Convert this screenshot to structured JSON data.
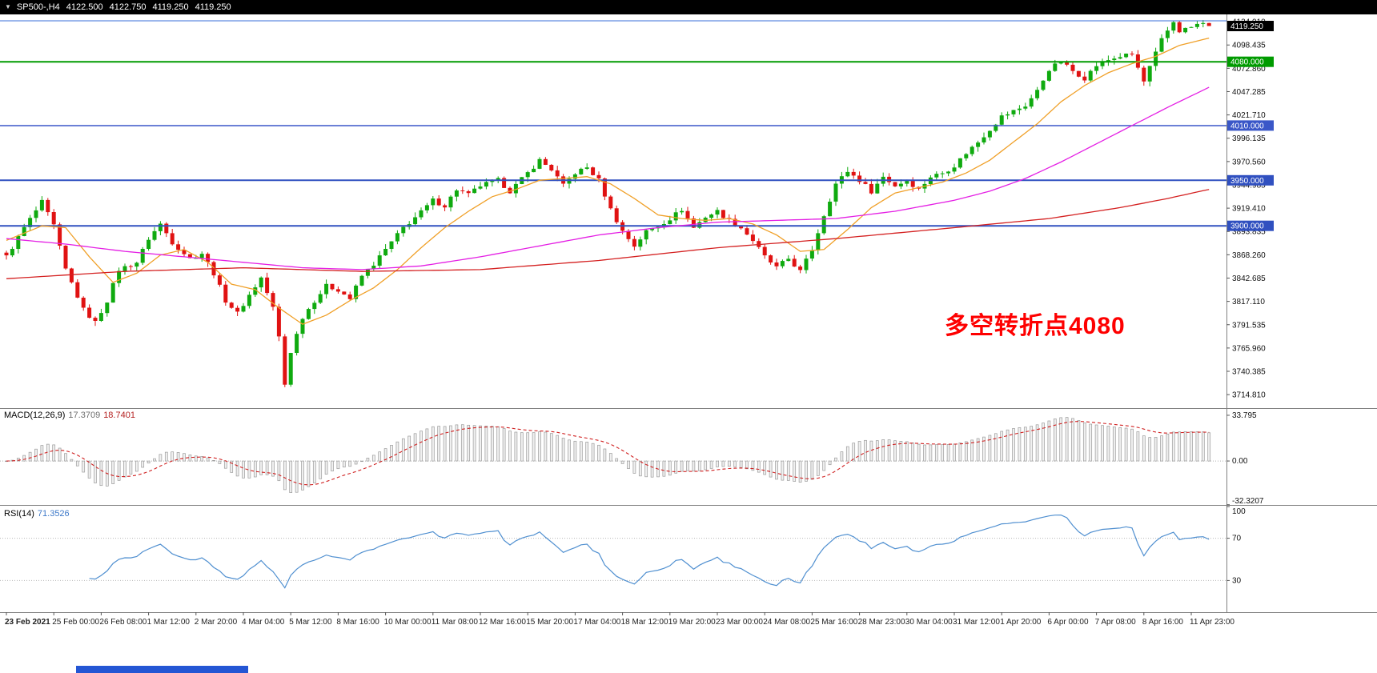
{
  "header": {
    "dropdown_icon": "▼",
    "symbol_period": "SP500-,H4",
    "open": "4122.500",
    "high": "4122.750",
    "low": "4119.250",
    "close": "4119.250"
  },
  "annotation": {
    "text": "多空转折点4080",
    "color": "#fe0000"
  },
  "indicators": {
    "macd": {
      "name": "MACD(12,26,9)",
      "main_value": "17.3709",
      "signal_value": "18.7401",
      "axis_labels": [
        "33.795",
        "0.00",
        "-32.3207"
      ]
    },
    "rsi": {
      "name": "RSI(14)",
      "value": "71.3526",
      "axis_labels": [
        "100",
        "70",
        "30"
      ]
    }
  },
  "price_axis": {
    "boxes": [
      {
        "text": "4119.250",
        "price": 4119.25,
        "bg": "#000000"
      },
      {
        "text": "4080.000",
        "price": 4080.0,
        "bg": "#009b00"
      },
      {
        "text": "4010.000",
        "price": 4010.0,
        "bg": "#3a57c8"
      },
      {
        "text": "3950.000",
        "price": 3950.0,
        "bg": "#3050c0"
      },
      {
        "text": "3900.000",
        "price": 3900.0,
        "bg": "#3050c0"
      }
    ]
  },
  "decor": {
    "bottom_strip_color": "#2456d4"
  },
  "chart_data": {
    "type": "candlestick",
    "symbol": "SP500-",
    "timeframe": "H4",
    "bars": 204,
    "y_axis": {
      "price_top": 4132,
      "price_bottom": 3700,
      "labels": [
        "4124.010",
        "4098.435",
        "4072.860",
        "4047.285",
        "4021.710",
        "3996.135",
        "3970.560",
        "3944.985",
        "3919.410",
        "3893.835",
        "3868.260",
        "3842.685",
        "3817.110",
        "3791.535",
        "3765.960",
        "3740.385",
        "3714.810"
      ]
    },
    "x_axis": {
      "labels": [
        "23 Feb 2021",
        "25 Feb 00:00",
        "26 Feb 08:00",
        "1 Mar 12:00",
        "2 Mar 20:00",
        "4 Mar 04:00",
        "5 Mar 12:00",
        "8 Mar 16:00",
        "10 Mar 00:00",
        "11 Mar 08:00",
        "12 Mar 16:00",
        "15 Mar 20:00",
        "17 Mar 04:00",
        "18 Mar 12:00",
        "19 Mar 20:00",
        "23 Mar 00:00",
        "24 Mar 08:00",
        "25 Mar 16:00",
        "28 Mar 23:00",
        "30 Mar 04:00",
        "31 Mar 12:00",
        "1 Apr 20:00",
        "6 Apr 00:00",
        "7 Apr 08:00",
        "8 Apr 16:00",
        "11 Apr 23:00"
      ]
    },
    "last_bar": {
      "open": 4122.5,
      "high": 4122.75,
      "low": 4119.25,
      "close": 4119.25
    },
    "candle_colors": {
      "up": "#0faa0f",
      "down": "#e01212"
    },
    "close_waypoints": [
      [
        0,
        3866
      ],
      [
        3,
        3898
      ],
      [
        6,
        3926
      ],
      [
        8,
        3900
      ],
      [
        10,
        3852
      ],
      [
        13,
        3808
      ],
      [
        15,
        3794
      ],
      [
        17,
        3818
      ],
      [
        19,
        3852
      ],
      [
        22,
        3860
      ],
      [
        24,
        3886
      ],
      [
        26,
        3902
      ],
      [
        28,
        3882
      ],
      [
        31,
        3864
      ],
      [
        33,
        3870
      ],
      [
        35,
        3848
      ],
      [
        37,
        3818
      ],
      [
        39,
        3804
      ],
      [
        41,
        3824
      ],
      [
        43,
        3843
      ],
      [
        45,
        3810
      ],
      [
        46,
        3778
      ],
      [
        47,
        3726
      ],
      [
        48,
        3762
      ],
      [
        50,
        3800
      ],
      [
        52,
        3818
      ],
      [
        54,
        3834
      ],
      [
        56,
        3830
      ],
      [
        58,
        3820
      ],
      [
        60,
        3845
      ],
      [
        62,
        3858
      ],
      [
        64,
        3874
      ],
      [
        67,
        3898
      ],
      [
        70,
        3915
      ],
      [
        72,
        3928
      ],
      [
        74,
        3922
      ],
      [
        76,
        3940
      ],
      [
        78,
        3934
      ],
      [
        80,
        3944
      ],
      [
        83,
        3950
      ],
      [
        85,
        3938
      ],
      [
        88,
        3958
      ],
      [
        90,
        3972
      ],
      [
        92,
        3962
      ],
      [
        94,
        3944
      ],
      [
        96,
        3958
      ],
      [
        98,
        3964
      ],
      [
        100,
        3950
      ],
      [
        102,
        3918
      ],
      [
        104,
        3894
      ],
      [
        106,
        3878
      ],
      [
        108,
        3894
      ],
      [
        110,
        3900
      ],
      [
        112,
        3908
      ],
      [
        114,
        3918
      ],
      [
        116,
        3898
      ],
      [
        118,
        3910
      ],
      [
        120,
        3916
      ],
      [
        122,
        3906
      ],
      [
        124,
        3898
      ],
      [
        126,
        3884
      ],
      [
        128,
        3866
      ],
      [
        130,
        3854
      ],
      [
        132,
        3864
      ],
      [
        134,
        3850
      ],
      [
        136,
        3874
      ],
      [
        138,
        3912
      ],
      [
        140,
        3946
      ],
      [
        142,
        3960
      ],
      [
        144,
        3950
      ],
      [
        146,
        3938
      ],
      [
        148,
        3954
      ],
      [
        150,
        3944
      ],
      [
        152,
        3950
      ],
      [
        154,
        3940
      ],
      [
        156,
        3954
      ],
      [
        158,
        3958
      ],
      [
        160,
        3966
      ],
      [
        162,
        3980
      ],
      [
        164,
        3992
      ],
      [
        166,
        4006
      ],
      [
        168,
        4020
      ],
      [
        170,
        4026
      ],
      [
        172,
        4032
      ],
      [
        174,
        4048
      ],
      [
        176,
        4072
      ],
      [
        178,
        4080
      ],
      [
        180,
        4070
      ],
      [
        182,
        4062
      ],
      [
        184,
        4076
      ],
      [
        186,
        4082
      ],
      [
        188,
        4086
      ],
      [
        190,
        4088
      ],
      [
        192,
        4058
      ],
      [
        193,
        4074
      ],
      [
        195,
        4104
      ],
      [
        197,
        4124
      ],
      [
        198,
        4114
      ],
      [
        200,
        4118
      ],
      [
        202,
        4124
      ],
      [
        203,
        4119.25
      ]
    ],
    "horizontal_lines": [
      {
        "price": 4125.0,
        "color": "#3a6fd8",
        "width": 1
      },
      {
        "price": 4080.0,
        "color": "#009b00",
        "width": 2
      },
      {
        "price": 4010.0,
        "color": "#3a57c8",
        "width": 1.5
      },
      {
        "price": 3950.0,
        "color": "#3050c0",
        "width": 2
      },
      {
        "price": 3900.0,
        "color": "#3050c0",
        "width": 2
      }
    ],
    "moving_averages": [
      {
        "name": "ma-fast",
        "color": "#f0a028",
        "waypoints": [
          [
            0,
            3884
          ],
          [
            6,
            3900
          ],
          [
            10,
            3898
          ],
          [
            14,
            3866
          ],
          [
            18,
            3838
          ],
          [
            22,
            3848
          ],
          [
            26,
            3868
          ],
          [
            30,
            3874
          ],
          [
            34,
            3860
          ],
          [
            38,
            3836
          ],
          [
            42,
            3830
          ],
          [
            46,
            3810
          ],
          [
            50,
            3792
          ],
          [
            54,
            3802
          ],
          [
            58,
            3818
          ],
          [
            62,
            3832
          ],
          [
            66,
            3852
          ],
          [
            70,
            3876
          ],
          [
            74,
            3898
          ],
          [
            78,
            3916
          ],
          [
            82,
            3932
          ],
          [
            86,
            3940
          ],
          [
            90,
            3950
          ],
          [
            94,
            3952
          ],
          [
            98,
            3954
          ],
          [
            102,
            3946
          ],
          [
            106,
            3930
          ],
          [
            110,
            3912
          ],
          [
            114,
            3908
          ],
          [
            118,
            3906
          ],
          [
            122,
            3908
          ],
          [
            126,
            3902
          ],
          [
            130,
            3890
          ],
          [
            134,
            3872
          ],
          [
            138,
            3874
          ],
          [
            142,
            3896
          ],
          [
            146,
            3920
          ],
          [
            150,
            3936
          ],
          [
            154,
            3942
          ],
          [
            158,
            3948
          ],
          [
            162,
            3958
          ],
          [
            166,
            3972
          ],
          [
            170,
            3992
          ],
          [
            174,
            4012
          ],
          [
            178,
            4036
          ],
          [
            182,
            4054
          ],
          [
            186,
            4068
          ],
          [
            190,
            4078
          ],
          [
            194,
            4086
          ],
          [
            198,
            4098
          ],
          [
            203,
            4106
          ]
        ]
      },
      {
        "name": "ma-mid",
        "color": "#e41fe4",
        "waypoints": [
          [
            0,
            3886
          ],
          [
            10,
            3880
          ],
          [
            20,
            3872
          ],
          [
            30,
            3866
          ],
          [
            40,
            3860
          ],
          [
            50,
            3854
          ],
          [
            60,
            3852
          ],
          [
            70,
            3856
          ],
          [
            80,
            3866
          ],
          [
            90,
            3878
          ],
          [
            100,
            3890
          ],
          [
            110,
            3898
          ],
          [
            120,
            3904
          ],
          [
            130,
            3906
          ],
          [
            140,
            3908
          ],
          [
            150,
            3916
          ],
          [
            160,
            3928
          ],
          [
            166,
            3938
          ],
          [
            172,
            3952
          ],
          [
            178,
            3970
          ],
          [
            184,
            3990
          ],
          [
            190,
            4010
          ],
          [
            196,
            4030
          ],
          [
            203,
            4052
          ]
        ]
      },
      {
        "name": "ma-slow",
        "color": "#d42020",
        "waypoints": [
          [
            0,
            3842
          ],
          [
            20,
            3850
          ],
          [
            40,
            3854
          ],
          [
            60,
            3850
          ],
          [
            80,
            3852
          ],
          [
            100,
            3862
          ],
          [
            120,
            3876
          ],
          [
            140,
            3886
          ],
          [
            160,
            3898
          ],
          [
            176,
            3908
          ],
          [
            188,
            3920
          ],
          [
            196,
            3930
          ],
          [
            203,
            3940
          ]
        ]
      }
    ],
    "macd": {
      "params": [
        12,
        26,
        9
      ],
      "y_max": 38.5,
      "y_min": -32.5,
      "hist_fill": "#f0f0f0",
      "hist_stroke": "#9a9a9a",
      "signal_color": "#d02020"
    },
    "rsi": {
      "period": 14,
      "levels": [
        70,
        30
      ],
      "range": [
        0,
        100
      ],
      "line_color": "#4f8fd0"
    }
  }
}
